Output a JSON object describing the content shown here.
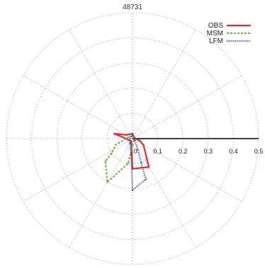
{
  "chart_data": {
    "type": "polar-line",
    "title": "48731",
    "radial_ticks": [
      "0",
      "0.1",
      "0.2",
      "0.3",
      "0.4",
      "0.5"
    ],
    "radial_values": [
      0,
      0.1,
      0.2,
      0.3,
      0.4,
      0.5
    ],
    "rmax": 0.5,
    "angle_unit": "deg (math, counter-clockwise from east)",
    "series": [
      {
        "name": "OBS",
        "color": "#e8262b",
        "dash": "solid",
        "points": [
          {
            "angle": 0,
            "r": 0.01
          },
          {
            "angle": 30,
            "r": 0.01
          },
          {
            "angle": 60,
            "r": 0.01
          },
          {
            "angle": 90,
            "r": 0.02
          },
          {
            "angle": 120,
            "r": 0.02
          },
          {
            "angle": 150,
            "r": 0.03
          },
          {
            "angle": 165,
            "r": 0.075
          },
          {
            "angle": 180,
            "r": 0.025
          },
          {
            "angle": 210,
            "r": 0.015
          },
          {
            "angle": 240,
            "r": 0.01
          },
          {
            "angle": 270,
            "r": 0.12
          },
          {
            "angle": 300,
            "r": 0.13
          },
          {
            "angle": 330,
            "r": 0.05
          },
          {
            "angle": 345,
            "r": 0.03
          }
        ]
      },
      {
        "name": "MSM",
        "color": "#6ab744",
        "dash": "dashed",
        "points": [
          {
            "angle": 0,
            "r": 0.005
          },
          {
            "angle": 60,
            "r": 0.01
          },
          {
            "angle": 120,
            "r": 0.01
          },
          {
            "angle": 150,
            "r": 0.015
          },
          {
            "angle": 200,
            "r": 0.07
          },
          {
            "angle": 215,
            "r": 0.1
          },
          {
            "angle": 220,
            "r": 0.14
          },
          {
            "angle": 240,
            "r": 0.2
          },
          {
            "angle": 260,
            "r": 0.1
          },
          {
            "angle": 270,
            "r": 0.03
          },
          {
            "angle": 300,
            "r": 0.01
          }
        ]
      },
      {
        "name": "LFM",
        "color": "#3a4a9e",
        "dash": "dotted",
        "points": [
          {
            "angle": 0,
            "r": 0.005
          },
          {
            "angle": 90,
            "r": 0.015
          },
          {
            "angle": 180,
            "r": 0.01
          },
          {
            "angle": 240,
            "r": 0.02
          },
          {
            "angle": 265,
            "r": 0.06
          },
          {
            "angle": 270,
            "r": 0.205
          },
          {
            "angle": 288,
            "r": 0.17
          },
          {
            "angle": 290,
            "r": 0.1
          },
          {
            "angle": 295,
            "r": 0.05
          },
          {
            "angle": 330,
            "r": 0.01
          }
        ]
      }
    ],
    "legend_position": "top-right",
    "grid": true
  }
}
